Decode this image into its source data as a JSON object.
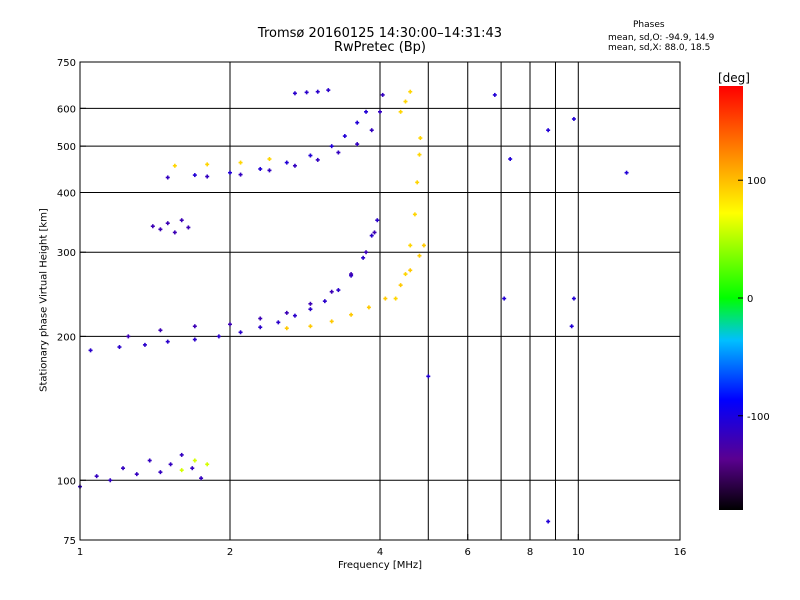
{
  "chart_data": {
    "type": "scatter",
    "title": "Tromsø 20160125 14:30:00–14:31:43",
    "subtitle": "RwPretec (Bp)",
    "xlabel": "Frequency [MHz]",
    "ylabel": "Stationary phase Virtual Height [km]",
    "x_scale": "log",
    "y_scale": "log",
    "xlim": [
      1,
      16
    ],
    "ylim": [
      75,
      750
    ],
    "x_ticks": [
      1,
      2,
      4,
      6,
      8,
      10,
      16
    ],
    "x_gridlines": [
      2,
      4,
      5,
      6,
      7,
      8,
      9,
      10
    ],
    "y_ticks": [
      75,
      100,
      200,
      300,
      400,
      500,
      600,
      750
    ],
    "y_gridlines": [
      100,
      200,
      300,
      400,
      500,
      600
    ],
    "grid": true,
    "colorbar": {
      "label": "[deg]",
      "min": -180,
      "max": 180,
      "ticks": [
        100,
        0,
        -100
      ]
    },
    "phase_stats": {
      "heading": "Phases",
      "line1": "mean, sd,O: -94.9, 14.9",
      "line2": "mean, sd,X:  88.0, 18.5"
    },
    "series": [
      {
        "points": [
          [
            1.0,
            97
          ],
          [
            1.08,
            102
          ],
          [
            1.15,
            100
          ],
          [
            1.22,
            106
          ],
          [
            1.3,
            103
          ],
          [
            1.38,
            110
          ],
          [
            1.45,
            104
          ],
          [
            1.52,
            108
          ],
          [
            1.6,
            113
          ],
          [
            1.68,
            106
          ],
          [
            1.75,
            101
          ]
        ],
        "phase": -115
      },
      {
        "points": [
          [
            1.05,
            187
          ],
          [
            1.2,
            190
          ],
          [
            1.35,
            192
          ],
          [
            1.5,
            195
          ],
          [
            1.7,
            197
          ],
          [
            1.9,
            200
          ],
          [
            2.1,
            204
          ],
          [
            2.3,
            209
          ],
          [
            2.5,
            214
          ],
          [
            2.7,
            221
          ],
          [
            2.9,
            228
          ],
          [
            3.1,
            237
          ],
          [
            3.3,
            250
          ],
          [
            3.5,
            268
          ],
          [
            3.7,
            292
          ],
          [
            3.85,
            325
          ],
          [
            3.95,
            350
          ]
        ],
        "phase": -110
      },
      {
        "points": [
          [
            1.25,
            200
          ],
          [
            1.45,
            206
          ],
          [
            1.7,
            210
          ],
          [
            2.0,
            212
          ],
          [
            2.3,
            218
          ],
          [
            2.6,
            224
          ],
          [
            2.9,
            234
          ],
          [
            3.2,
            248
          ],
          [
            3.5,
            270
          ],
          [
            3.75,
            300
          ],
          [
            3.9,
            330
          ]
        ],
        "phase": -120
      },
      {
        "points": [
          [
            2.6,
            208
          ],
          [
            2.9,
            210
          ],
          [
            3.2,
            215
          ],
          [
            3.5,
            222
          ],
          [
            3.8,
            230
          ],
          [
            4.1,
            240
          ],
          [
            4.4,
            256
          ],
          [
            4.6,
            275
          ],
          [
            4.8,
            295
          ],
          [
            4.9,
            310
          ]
        ],
        "phase": 95
      },
      {
        "points": [
          [
            4.3,
            240
          ],
          [
            4.5,
            270
          ],
          [
            4.6,
            310
          ],
          [
            4.7,
            360
          ],
          [
            4.75,
            420
          ],
          [
            4.8,
            480
          ],
          [
            4.82,
            520
          ]
        ],
        "phase": 90
      },
      {
        "points": [
          [
            1.5,
            430
          ],
          [
            1.8,
            432
          ],
          [
            2.1,
            436
          ],
          [
            2.4,
            445
          ],
          [
            2.7,
            455
          ],
          [
            3.0,
            468
          ],
          [
            3.3,
            485
          ],
          [
            3.6,
            505
          ],
          [
            3.85,
            540
          ],
          [
            4.0,
            590
          ],
          [
            4.05,
            640
          ]
        ],
        "phase": -115
      },
      {
        "points": [
          [
            1.7,
            435
          ],
          [
            2.0,
            440
          ],
          [
            2.3,
            448
          ],
          [
            2.6,
            462
          ],
          [
            2.9,
            478
          ],
          [
            3.2,
            500
          ],
          [
            3.4,
            525
          ],
          [
            3.6,
            560
          ],
          [
            3.75,
            590
          ]
        ],
        "phase": -105
      },
      {
        "points": [
          [
            1.55,
            455
          ],
          [
            1.8,
            458
          ],
          [
            2.1,
            462
          ],
          [
            2.4,
            470
          ]
        ],
        "phase": 90
      },
      {
        "points": [
          [
            2.7,
            645
          ],
          [
            2.85,
            648
          ],
          [
            3.0,
            650
          ],
          [
            3.15,
            655
          ]
        ],
        "phase": -110
      },
      {
        "points": [
          [
            1.4,
            340
          ],
          [
            1.45,
            335
          ],
          [
            1.5,
            345
          ],
          [
            1.55,
            330
          ],
          [
            1.6,
            350
          ],
          [
            1.65,
            338
          ]
        ],
        "phase": -120
      },
      {
        "points": [
          [
            4.4,
            590
          ],
          [
            4.5,
            620
          ],
          [
            4.6,
            650
          ]
        ],
        "phase": 90
      },
      {
        "points": [
          [
            1.6,
            105
          ],
          [
            1.7,
            110
          ],
          [
            1.8,
            108
          ]
        ],
        "phase": 60
      },
      {
        "points": [
          [
            6.8,
            640
          ],
          [
            7.3,
            470
          ],
          [
            8.7,
            540
          ],
          [
            9.8,
            570
          ],
          [
            12.5,
            440
          ],
          [
            7.1,
            240
          ],
          [
            9.8,
            240
          ],
          [
            9.7,
            210
          ],
          [
            8.7,
            82
          ],
          [
            5.0,
            165
          ]
        ],
        "phase": -105
      }
    ]
  }
}
